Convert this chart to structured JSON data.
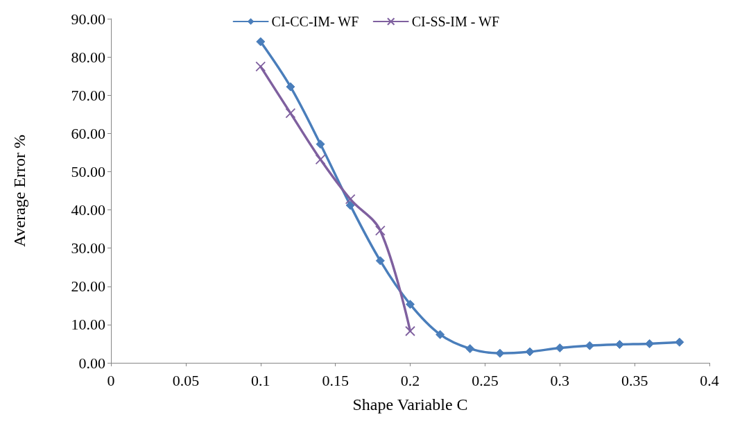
{
  "chart_data": {
    "type": "line",
    "xlabel": "Shape Variable C",
    "ylabel": "Average Error %",
    "xlim": [
      0,
      0.4
    ],
    "xticks": [
      0,
      0.05,
      0.1,
      0.15,
      0.2,
      0.25,
      0.3,
      0.35,
      0.4
    ],
    "ylim": [
      0,
      90
    ],
    "yticks": [
      {
        "value": 0,
        "label": "0.00"
      },
      {
        "value": 10,
        "label": "10.00"
      },
      {
        "value": 20,
        "label": "20.00"
      },
      {
        "value": 30,
        "label": "30.00"
      },
      {
        "value": 40,
        "label": "40.00"
      },
      {
        "value": 50,
        "label": "50.00"
      },
      {
        "value": 60,
        "label": "60.00"
      },
      {
        "value": 70,
        "label": "70.00"
      },
      {
        "value": 80,
        "label": "80.00"
      },
      {
        "value": 90,
        "label": "90.00"
      }
    ],
    "grid": false,
    "legend": "top",
    "line_style": "solid",
    "series": [
      {
        "name": "CI-CC-IM- WF",
        "color": "#4a7ebb",
        "marker": "diamond",
        "x": [
          0.1,
          0.12,
          0.14,
          0.16,
          0.18,
          0.2,
          0.22,
          0.24,
          0.26,
          0.28,
          0.3,
          0.32,
          0.34,
          0.36,
          0.38
        ],
        "values": [
          84.0,
          72.2,
          57.2,
          41.2,
          26.7,
          15.3,
          7.4,
          3.7,
          2.5,
          2.9,
          3.9,
          4.5,
          4.8,
          5.0,
          5.4
        ]
      },
      {
        "name": "CI-SS-IM - WF",
        "color": "#7f609f",
        "marker": "cross",
        "x": [
          0.1,
          0.12,
          0.14,
          0.16,
          0.18,
          0.2
        ],
        "values": [
          77.5,
          65.3,
          53.2,
          42.8,
          34.6,
          8.3
        ]
      }
    ]
  }
}
